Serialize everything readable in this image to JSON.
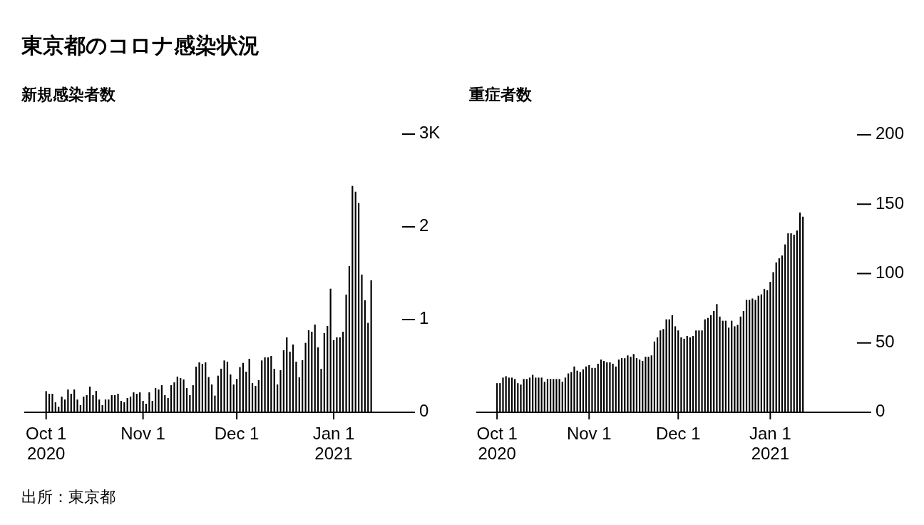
{
  "chart_data": [
    {
      "type": "bar",
      "title": "東京都のコロナ感染状況",
      "subtitle": "新規感染者数",
      "annotations": [
        "出所：東京都"
      ],
      "color": "#000000",
      "x": [
        "2020-10-01",
        "2020-10-02",
        "2020-10-03",
        "2020-10-04",
        "2020-10-05",
        "2020-10-06",
        "2020-10-07",
        "2020-10-08",
        "2020-10-09",
        "2020-10-10",
        "2020-10-11",
        "2020-10-12",
        "2020-10-13",
        "2020-10-14",
        "2020-10-15",
        "2020-10-16",
        "2020-10-17",
        "2020-10-18",
        "2020-10-19",
        "2020-10-20",
        "2020-10-21",
        "2020-10-22",
        "2020-10-23",
        "2020-10-24",
        "2020-10-25",
        "2020-10-26",
        "2020-10-27",
        "2020-10-28",
        "2020-10-29",
        "2020-10-30",
        "2020-10-31",
        "2020-11-01",
        "2020-11-02",
        "2020-11-03",
        "2020-11-04",
        "2020-11-05",
        "2020-11-06",
        "2020-11-07",
        "2020-11-08",
        "2020-11-09",
        "2020-11-10",
        "2020-11-11",
        "2020-11-12",
        "2020-11-13",
        "2020-11-14",
        "2020-11-15",
        "2020-11-16",
        "2020-11-17",
        "2020-11-18",
        "2020-11-19",
        "2020-11-20",
        "2020-11-21",
        "2020-11-22",
        "2020-11-23",
        "2020-11-24",
        "2020-11-25",
        "2020-11-26",
        "2020-11-27",
        "2020-11-28",
        "2020-11-29",
        "2020-11-30",
        "2020-12-01",
        "2020-12-02",
        "2020-12-03",
        "2020-12-04",
        "2020-12-05",
        "2020-12-06",
        "2020-12-07",
        "2020-12-08",
        "2020-12-09",
        "2020-12-10",
        "2020-12-11",
        "2020-12-12",
        "2020-12-13",
        "2020-12-14",
        "2020-12-15",
        "2020-12-16",
        "2020-12-17",
        "2020-12-18",
        "2020-12-19",
        "2020-12-20",
        "2020-12-21",
        "2020-12-22",
        "2020-12-23",
        "2020-12-24",
        "2020-12-25",
        "2020-12-26",
        "2020-12-27",
        "2020-12-28",
        "2020-12-29",
        "2020-12-30",
        "2020-12-31",
        "2021-01-01",
        "2021-01-02",
        "2021-01-03",
        "2021-01-04",
        "2021-01-05",
        "2021-01-06",
        "2021-01-07",
        "2021-01-08",
        "2021-01-09",
        "2021-01-10",
        "2021-01-11",
        "2021-01-12",
        "2021-01-13"
      ],
      "values": [
        0.228,
        0.2,
        0.2,
        0.108,
        0.059,
        0.169,
        0.138,
        0.246,
        0.2,
        0.246,
        0.138,
        0.077,
        0.169,
        0.185,
        0.277,
        0.185,
        0.231,
        0.138,
        0.077,
        0.138,
        0.138,
        0.185,
        0.185,
        0.2,
        0.123,
        0.108,
        0.154,
        0.169,
        0.215,
        0.2,
        0.215,
        0.123,
        0.092,
        0.215,
        0.123,
        0.262,
        0.246,
        0.292,
        0.185,
        0.154,
        0.292,
        0.323,
        0.385,
        0.369,
        0.354,
        0.262,
        0.185,
        0.292,
        0.492,
        0.538,
        0.523,
        0.538,
        0.38,
        0.3,
        0.18,
        0.395,
        0.47,
        0.559,
        0.546,
        0.408,
        0.3,
        0.359,
        0.487,
        0.533,
        0.438,
        0.577,
        0.315,
        0.285,
        0.346,
        0.559,
        0.592,
        0.592,
        0.608,
        0.469,
        0.3,
        0.454,
        0.669,
        0.808,
        0.654,
        0.731,
        0.546,
        0.377,
        0.562,
        0.749,
        0.885,
        0.869,
        0.946,
        0.7,
        0.469,
        0.854,
        0.931,
        1.333,
        0.777,
        0.808,
        0.808,
        0.869,
        1.269,
        1.577,
        2.441,
        2.379,
        2.256,
        1.485,
        1.208,
        0.964,
        1.423
      ],
      "xlim": [
        "2020-09-24",
        "2021-01-27"
      ],
      "xticks": [
        {
          "value": "2020-10-01",
          "label": "Oct 1\n2020"
        },
        {
          "value": "2020-11-01",
          "label": "Nov 1"
        },
        {
          "value": "2020-12-01",
          "label": "Dec 1"
        },
        {
          "value": "2021-01-01",
          "label": "Jan 1\n2021"
        }
      ],
      "ylim": [
        0,
        3
      ],
      "yticks": [
        0,
        1,
        2,
        {
          "value": 3,
          "label": "3K"
        }
      ]
    },
    {
      "type": "bar",
      "subtitle": "重症者数",
      "color": "#000000",
      "x": [
        "2020-10-01",
        "2020-10-02",
        "2020-10-03",
        "2020-10-04",
        "2020-10-05",
        "2020-10-06",
        "2020-10-07",
        "2020-10-08",
        "2020-10-09",
        "2020-10-10",
        "2020-10-11",
        "2020-10-12",
        "2020-10-13",
        "2020-10-14",
        "2020-10-15",
        "2020-10-16",
        "2020-10-17",
        "2020-10-18",
        "2020-10-19",
        "2020-10-20",
        "2020-10-21",
        "2020-10-22",
        "2020-10-23",
        "2020-10-24",
        "2020-10-25",
        "2020-10-26",
        "2020-10-27",
        "2020-10-28",
        "2020-10-29",
        "2020-10-30",
        "2020-10-31",
        "2020-11-01",
        "2020-11-02",
        "2020-11-03",
        "2020-11-04",
        "2020-11-05",
        "2020-11-06",
        "2020-11-07",
        "2020-11-08",
        "2020-11-09",
        "2020-11-10",
        "2020-11-11",
        "2020-11-12",
        "2020-11-13",
        "2020-11-14",
        "2020-11-15",
        "2020-11-16",
        "2020-11-17",
        "2020-11-18",
        "2020-11-19",
        "2020-11-20",
        "2020-11-21",
        "2020-11-22",
        "2020-11-23",
        "2020-11-24",
        "2020-11-25",
        "2020-11-26",
        "2020-11-27",
        "2020-11-28",
        "2020-11-29",
        "2020-11-30",
        "2020-12-01",
        "2020-12-02",
        "2020-12-03",
        "2020-12-04",
        "2020-12-05",
        "2020-12-06",
        "2020-12-07",
        "2020-12-08",
        "2020-12-09",
        "2020-12-10",
        "2020-12-11",
        "2020-12-12",
        "2020-12-13",
        "2020-12-14",
        "2020-12-15",
        "2020-12-16",
        "2020-12-17",
        "2020-12-18",
        "2020-12-19",
        "2020-12-20",
        "2020-12-21",
        "2020-12-22",
        "2020-12-23",
        "2020-12-24",
        "2020-12-25",
        "2020-12-26",
        "2020-12-27",
        "2020-12-28",
        "2020-12-29",
        "2020-12-30",
        "2020-12-31",
        "2021-01-01",
        "2021-01-02",
        "2021-01-03",
        "2021-01-04",
        "2021-01-05",
        "2021-01-06",
        "2021-01-07",
        "2021-01-08",
        "2021-01-09",
        "2021-01-10",
        "2021-01-11",
        "2021-01-12"
      ],
      "values": [
        21,
        21,
        25,
        26,
        25,
        25,
        24,
        21,
        20,
        24,
        24,
        25,
        27,
        25,
        25,
        25,
        22,
        24,
        24,
        24,
        24,
        24,
        22,
        25,
        28,
        29,
        33,
        30,
        29,
        31,
        33,
        34,
        32,
        32,
        35,
        38,
        37,
        36,
        36,
        35,
        33,
        38,
        39,
        39,
        41,
        40,
        42,
        39,
        38,
        37,
        40,
        40,
        41,
        51,
        54,
        59,
        60,
        67,
        67,
        70,
        62,
        59,
        54,
        53,
        55,
        54,
        55,
        59,
        59,
        59,
        67,
        68,
        70,
        73,
        78,
        69,
        66,
        66,
        61,
        66,
        62,
        63,
        69,
        73,
        81,
        81,
        82,
        81,
        84,
        85,
        89,
        88,
        94,
        101,
        108,
        111,
        113,
        121,
        129,
        129,
        128,
        131,
        144,
        141
      ],
      "xlim": [
        "2020-09-24",
        "2021-02-04"
      ],
      "xticks": [
        {
          "value": "2020-10-01",
          "label": "Oct 1\n2020"
        },
        {
          "value": "2020-11-01",
          "label": "Nov 1"
        },
        {
          "value": "2020-12-01",
          "label": "Dec 1"
        },
        {
          "value": "2021-01-01",
          "label": "Jan 1\n2021"
        }
      ],
      "ylim": [
        0,
        200
      ],
      "yticks": [
        0,
        50,
        100,
        150,
        200
      ]
    }
  ]
}
